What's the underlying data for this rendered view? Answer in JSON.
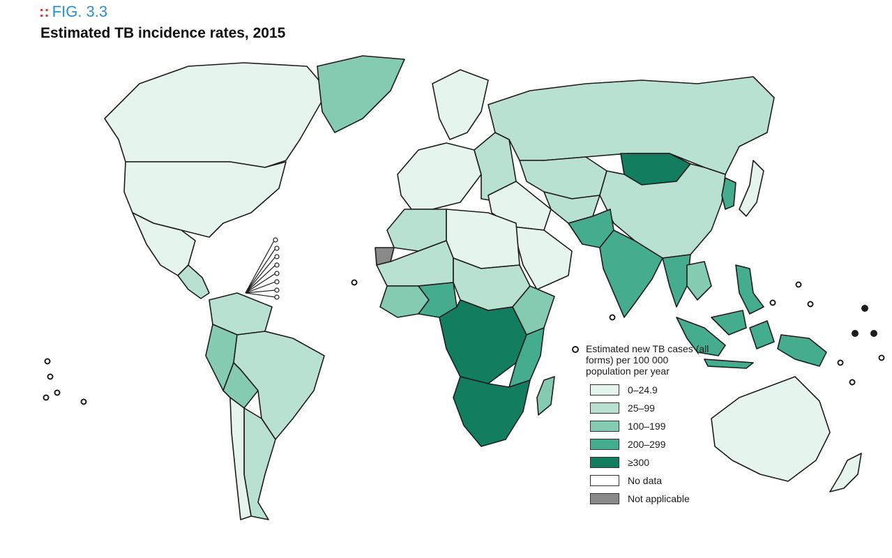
{
  "figure": {
    "label": "FIG. 3.3",
    "title": "Estimated TB incidence rates, 2015"
  },
  "legend": {
    "title": "Estimated new TB cases (all forms) per 100 000 population per year",
    "items": [
      {
        "label": "0–24.9",
        "color": "#e6f4ee"
      },
      {
        "label": "25–99",
        "color": "#b9e1d1"
      },
      {
        "label": "100–199",
        "color": "#84cbb1"
      },
      {
        "label": "200–299",
        "color": "#45ad8e"
      },
      {
        "label": "≥300",
        "color": "#127e5f"
      },
      {
        "label": "No data",
        "color": "#ffffff"
      },
      {
        "label": "Not applicable",
        "color": "#8a8a8a"
      }
    ]
  },
  "regions": [
    {
      "name": "Canada",
      "level": "0–24.9"
    },
    {
      "name": "United States",
      "level": "0–24.9"
    },
    {
      "name": "Mexico",
      "level": "0–24.9"
    },
    {
      "name": "Central America",
      "level": "25–99"
    },
    {
      "name": "Greenland",
      "level": "100–199"
    },
    {
      "name": "Colombia/Venezuela",
      "level": "25–99"
    },
    {
      "name": "Peru",
      "level": "100–199"
    },
    {
      "name": "Bolivia",
      "level": "100–199"
    },
    {
      "name": "Brazil",
      "level": "25–99"
    },
    {
      "name": "Argentina",
      "level": "25–99"
    },
    {
      "name": "Chile",
      "level": "0–24.9"
    },
    {
      "name": "Western Europe",
      "level": "0–24.9"
    },
    {
      "name": "Scandinavia",
      "level": "0–24.9"
    },
    {
      "name": "Eastern Europe",
      "level": "25–99"
    },
    {
      "name": "Russia",
      "level": "25–99"
    },
    {
      "name": "Kazakhstan",
      "level": "25–99"
    },
    {
      "name": "Central Asia",
      "level": "25–99"
    },
    {
      "name": "Mongolia",
      "level": "≥300"
    },
    {
      "name": "China",
      "level": "25–99"
    },
    {
      "name": "Korea",
      "level": "200–299"
    },
    {
      "name": "Japan",
      "level": "0–24.9"
    },
    {
      "name": "Middle East",
      "level": "0–24.9"
    },
    {
      "name": "Arabian Peninsula",
      "level": "0–24.9"
    },
    {
      "name": "Afghanistan/Pakistan",
      "level": "200–299"
    },
    {
      "name": "India",
      "level": "200–299"
    },
    {
      "name": "Myanmar",
      "level": "200–299"
    },
    {
      "name": "Thailand/Cambodia",
      "level": "100–199"
    },
    {
      "name": "Indonesia",
      "level": "200–299"
    },
    {
      "name": "Philippines",
      "level": "200–299"
    },
    {
      "name": "Papua New Guinea",
      "level": "200–299"
    },
    {
      "name": "Australia",
      "level": "0–24.9"
    },
    {
      "name": "New Zealand",
      "level": "0–24.9"
    },
    {
      "name": "Maghreb",
      "level": "25–99"
    },
    {
      "name": "Libya/Egypt",
      "level": "0–24.9"
    },
    {
      "name": "West Sahel",
      "level": "25–99"
    },
    {
      "name": "West Africa",
      "level": "100–199"
    },
    {
      "name": "Nigeria",
      "level": "200–299"
    },
    {
      "name": "Sudan",
      "level": "25–99"
    },
    {
      "name": "Ethiopia/Somalia",
      "level": "100–199"
    },
    {
      "name": "Central Africa",
      "level": "≥300"
    },
    {
      "name": "East Africa",
      "level": "200–299"
    },
    {
      "name": "Southern Africa",
      "level": "≥300"
    },
    {
      "name": "Madagascar",
      "level": "100–199"
    },
    {
      "name": "Western Sahara",
      "level": "Not applicable"
    }
  ]
}
